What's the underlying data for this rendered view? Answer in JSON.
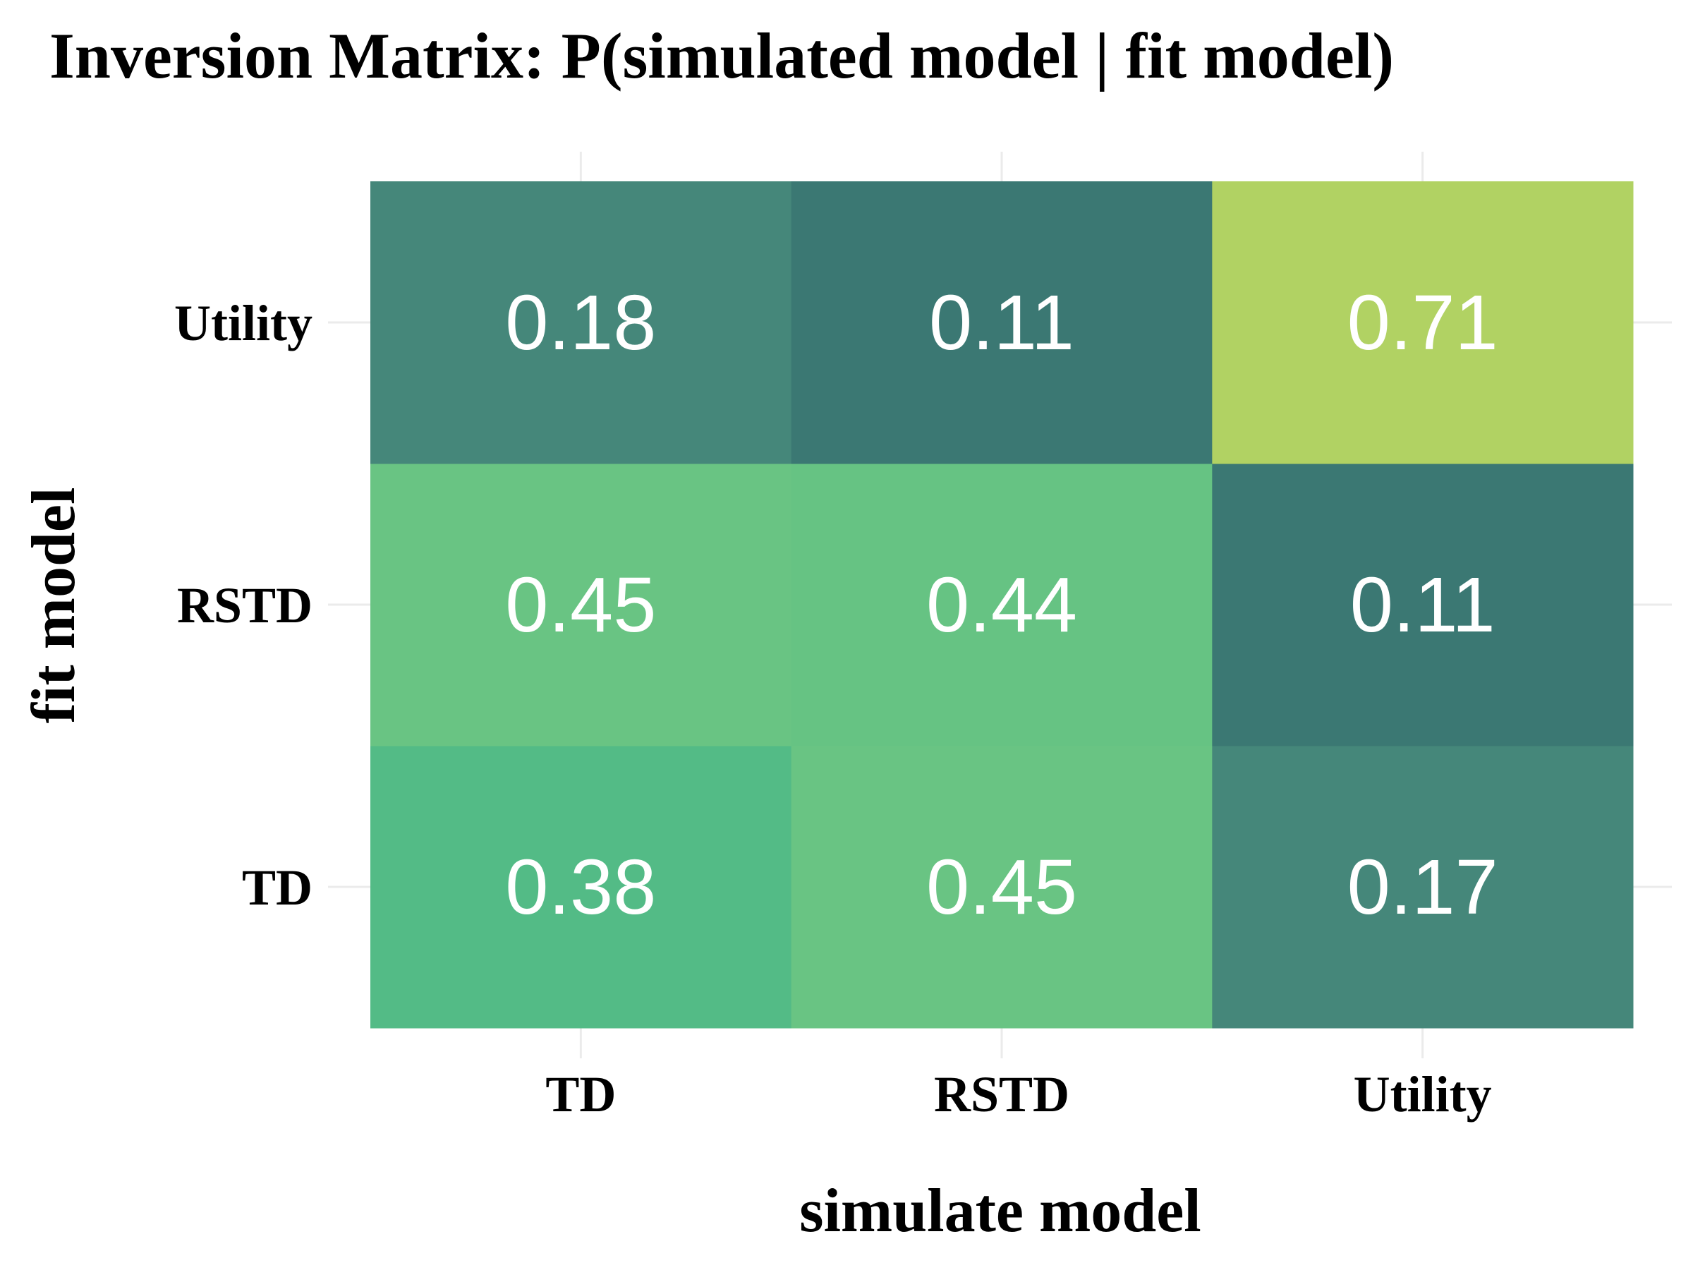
{
  "chart_data": {
    "type": "heatmap",
    "title": "Inversion Matrix: P(simulated model | fit model)",
    "xlabel": "simulate model",
    "ylabel": "fit model",
    "x_categories": [
      "TD",
      "RSTD",
      "Utility"
    ],
    "y_categories": [
      "TD",
      "RSTD",
      "Utility"
    ],
    "values": [
      [
        0.38,
        0.45,
        0.17
      ],
      [
        0.45,
        0.44,
        0.11
      ],
      [
        0.18,
        0.11,
        0.71
      ]
    ],
    "value_labels": [
      [
        "0.38",
        "0.45",
        "0.17"
      ],
      [
        "0.45",
        "0.44",
        "0.11"
      ],
      [
        "0.18",
        "0.11",
        "0.71"
      ]
    ],
    "colors": [
      [
        "#53bb86",
        "#69c483",
        "#45877a"
      ],
      [
        "#69c483",
        "#66c383",
        "#3b7873"
      ],
      [
        "#45877a",
        "#3b7873",
        "#b1d263"
      ]
    ],
    "grid": true,
    "legend": "none"
  }
}
